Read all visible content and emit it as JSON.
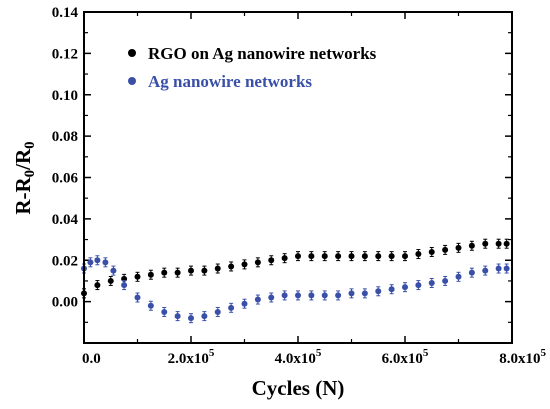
{
  "chart_data": {
    "type": "scatter",
    "xlabel": "Cycles (N)",
    "ylabel": "R-R0/R0",
    "xlim": [
      0,
      800000
    ],
    "ylim": [
      -0.02,
      0.14
    ],
    "x_tick_labels": [
      "0.0",
      "2.0x10",
      "4.0x10",
      "6.0x10",
      "8.0x10"
    ],
    "x_tick_exponent": "5",
    "x_tick_values": [
      0,
      200000,
      400000,
      600000,
      800000
    ],
    "y_ticks": [
      0.0,
      0.02,
      0.04,
      0.06,
      0.08,
      0.1,
      0.12,
      0.14
    ],
    "y_tick_labels": [
      "0.00",
      "0.02",
      "0.04",
      "0.06",
      "0.08",
      "0.10",
      "0.12",
      "0.14"
    ],
    "legend_position": "top-left",
    "series": [
      {
        "name": "RGO on Ag nanowire networks",
        "color": "#000000",
        "points": [
          [
            0,
            0.004
          ],
          [
            25000,
            0.008
          ],
          [
            50000,
            0.01
          ],
          [
            75000,
            0.011
          ],
          [
            100000,
            0.012
          ],
          [
            125000,
            0.013
          ],
          [
            150000,
            0.014
          ],
          [
            175000,
            0.014
          ],
          [
            200000,
            0.015
          ],
          [
            225000,
            0.015
          ],
          [
            250000,
            0.016
          ],
          [
            275000,
            0.017
          ],
          [
            300000,
            0.018
          ],
          [
            325000,
            0.019
          ],
          [
            350000,
            0.02
          ],
          [
            375000,
            0.021
          ],
          [
            400000,
            0.022
          ],
          [
            425000,
            0.022
          ],
          [
            450000,
            0.022
          ],
          [
            475000,
            0.022
          ],
          [
            500000,
            0.022
          ],
          [
            525000,
            0.022
          ],
          [
            550000,
            0.022
          ],
          [
            575000,
            0.022
          ],
          [
            600000,
            0.022
          ],
          [
            625000,
            0.023
          ],
          [
            650000,
            0.024
          ],
          [
            675000,
            0.025
          ],
          [
            700000,
            0.026
          ],
          [
            725000,
            0.027
          ],
          [
            750000,
            0.028
          ],
          [
            775000,
            0.028
          ],
          [
            790000,
            0.028
          ]
        ]
      },
      {
        "name": "Ag nanowire networks",
        "color": "#3a50a8",
        "points": [
          [
            0,
            0.016
          ],
          [
            12000,
            0.019
          ],
          [
            25000,
            0.02
          ],
          [
            40000,
            0.019
          ],
          [
            55000,
            0.015
          ],
          [
            75000,
            0.008
          ],
          [
            100000,
            0.002
          ],
          [
            125000,
            -0.002
          ],
          [
            150000,
            -0.005
          ],
          [
            175000,
            -0.007
          ],
          [
            200000,
            -0.008
          ],
          [
            225000,
            -0.007
          ],
          [
            250000,
            -0.005
          ],
          [
            275000,
            -0.003
          ],
          [
            300000,
            -0.001
          ],
          [
            325000,
            0.001
          ],
          [
            350000,
            0.002
          ],
          [
            375000,
            0.003
          ],
          [
            400000,
            0.003
          ],
          [
            425000,
            0.003
          ],
          [
            450000,
            0.003
          ],
          [
            475000,
            0.003
          ],
          [
            500000,
            0.004
          ],
          [
            525000,
            0.004
          ],
          [
            550000,
            0.005
          ],
          [
            575000,
            0.006
          ],
          [
            600000,
            0.007
          ],
          [
            625000,
            0.008
          ],
          [
            650000,
            0.009
          ],
          [
            675000,
            0.01
          ],
          [
            700000,
            0.012
          ],
          [
            725000,
            0.014
          ],
          [
            750000,
            0.015
          ],
          [
            775000,
            0.016
          ],
          [
            790000,
            0.016
          ]
        ]
      }
    ]
  }
}
